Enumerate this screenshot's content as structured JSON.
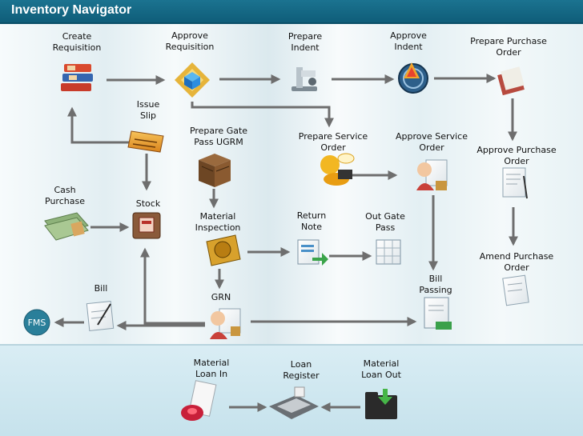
{
  "title": "Inventory Navigator",
  "nodes": {
    "create_requisition": "Create\nRequisition",
    "approve_requisition": "Approve\nRequisition",
    "prepare_indent": "Prepare\nIndent",
    "approve_indent": "Approve\nIndent",
    "prepare_purchase_order": "Prepare Purchase\nOrder",
    "issue_slip": "Issue\nSlip",
    "prepare_gate_pass": "Prepare Gate\nPass UGRM",
    "prepare_service_order": "Prepare Service\nOrder",
    "approve_service_order": "Approve Service\nOrder",
    "approve_purchase_order": "Approve Purchase\nOrder",
    "cash_purchase": "Cash\nPurchase",
    "stock": "Stock",
    "material_inspection": "Material\nInspection",
    "return_note": "Return\nNote",
    "out_gate_pass": "Out Gate\nPass",
    "amend_purchase_order": "Amend Purchase\nOrder",
    "bill": "Bill",
    "grn": "GRN",
    "bill_passing": "Bill\nPassing",
    "fms": "FMS",
    "material_loan_in": "Material\nLoan In",
    "loan_register": "Loan\nRegister",
    "material_loan_out": "Material\nLoan Out"
  },
  "icons": {
    "create_requisition": "binders-icon",
    "approve_requisition": "cube-approval-icon",
    "prepare_indent": "microscope-icon",
    "approve_indent": "indent-approval-icon",
    "prepare_purchase_order": "purchase-order-book-icon",
    "issue_slip": "issue-slip-icon",
    "prepare_gate_pass": "crate-icon",
    "prepare_service_order": "service-bot-icon",
    "approve_service_order": "approver-person-icon",
    "approve_purchase_order": "signed-document-icon",
    "cash_purchase": "cash-stack-icon",
    "stock": "stock-box-icon",
    "material_inspection": "inspection-seal-icon",
    "return_note": "return-note-icon",
    "out_gate_pass": "gate-pass-icon",
    "amend_purchase_order": "amend-document-icon",
    "bill": "bill-icon",
    "grn": "grn-person-icon",
    "bill_passing": "bill-passing-icon",
    "material_loan_in": "mouse-device-icon",
    "loan_register": "cash-register-icon",
    "material_loan_out": "folder-download-icon"
  },
  "colors": {
    "title_bar": "#136985",
    "arrow": "#6e6e6e",
    "fms_circle": "#2a7f9a",
    "bottom_panel": "#cfe7f0"
  }
}
